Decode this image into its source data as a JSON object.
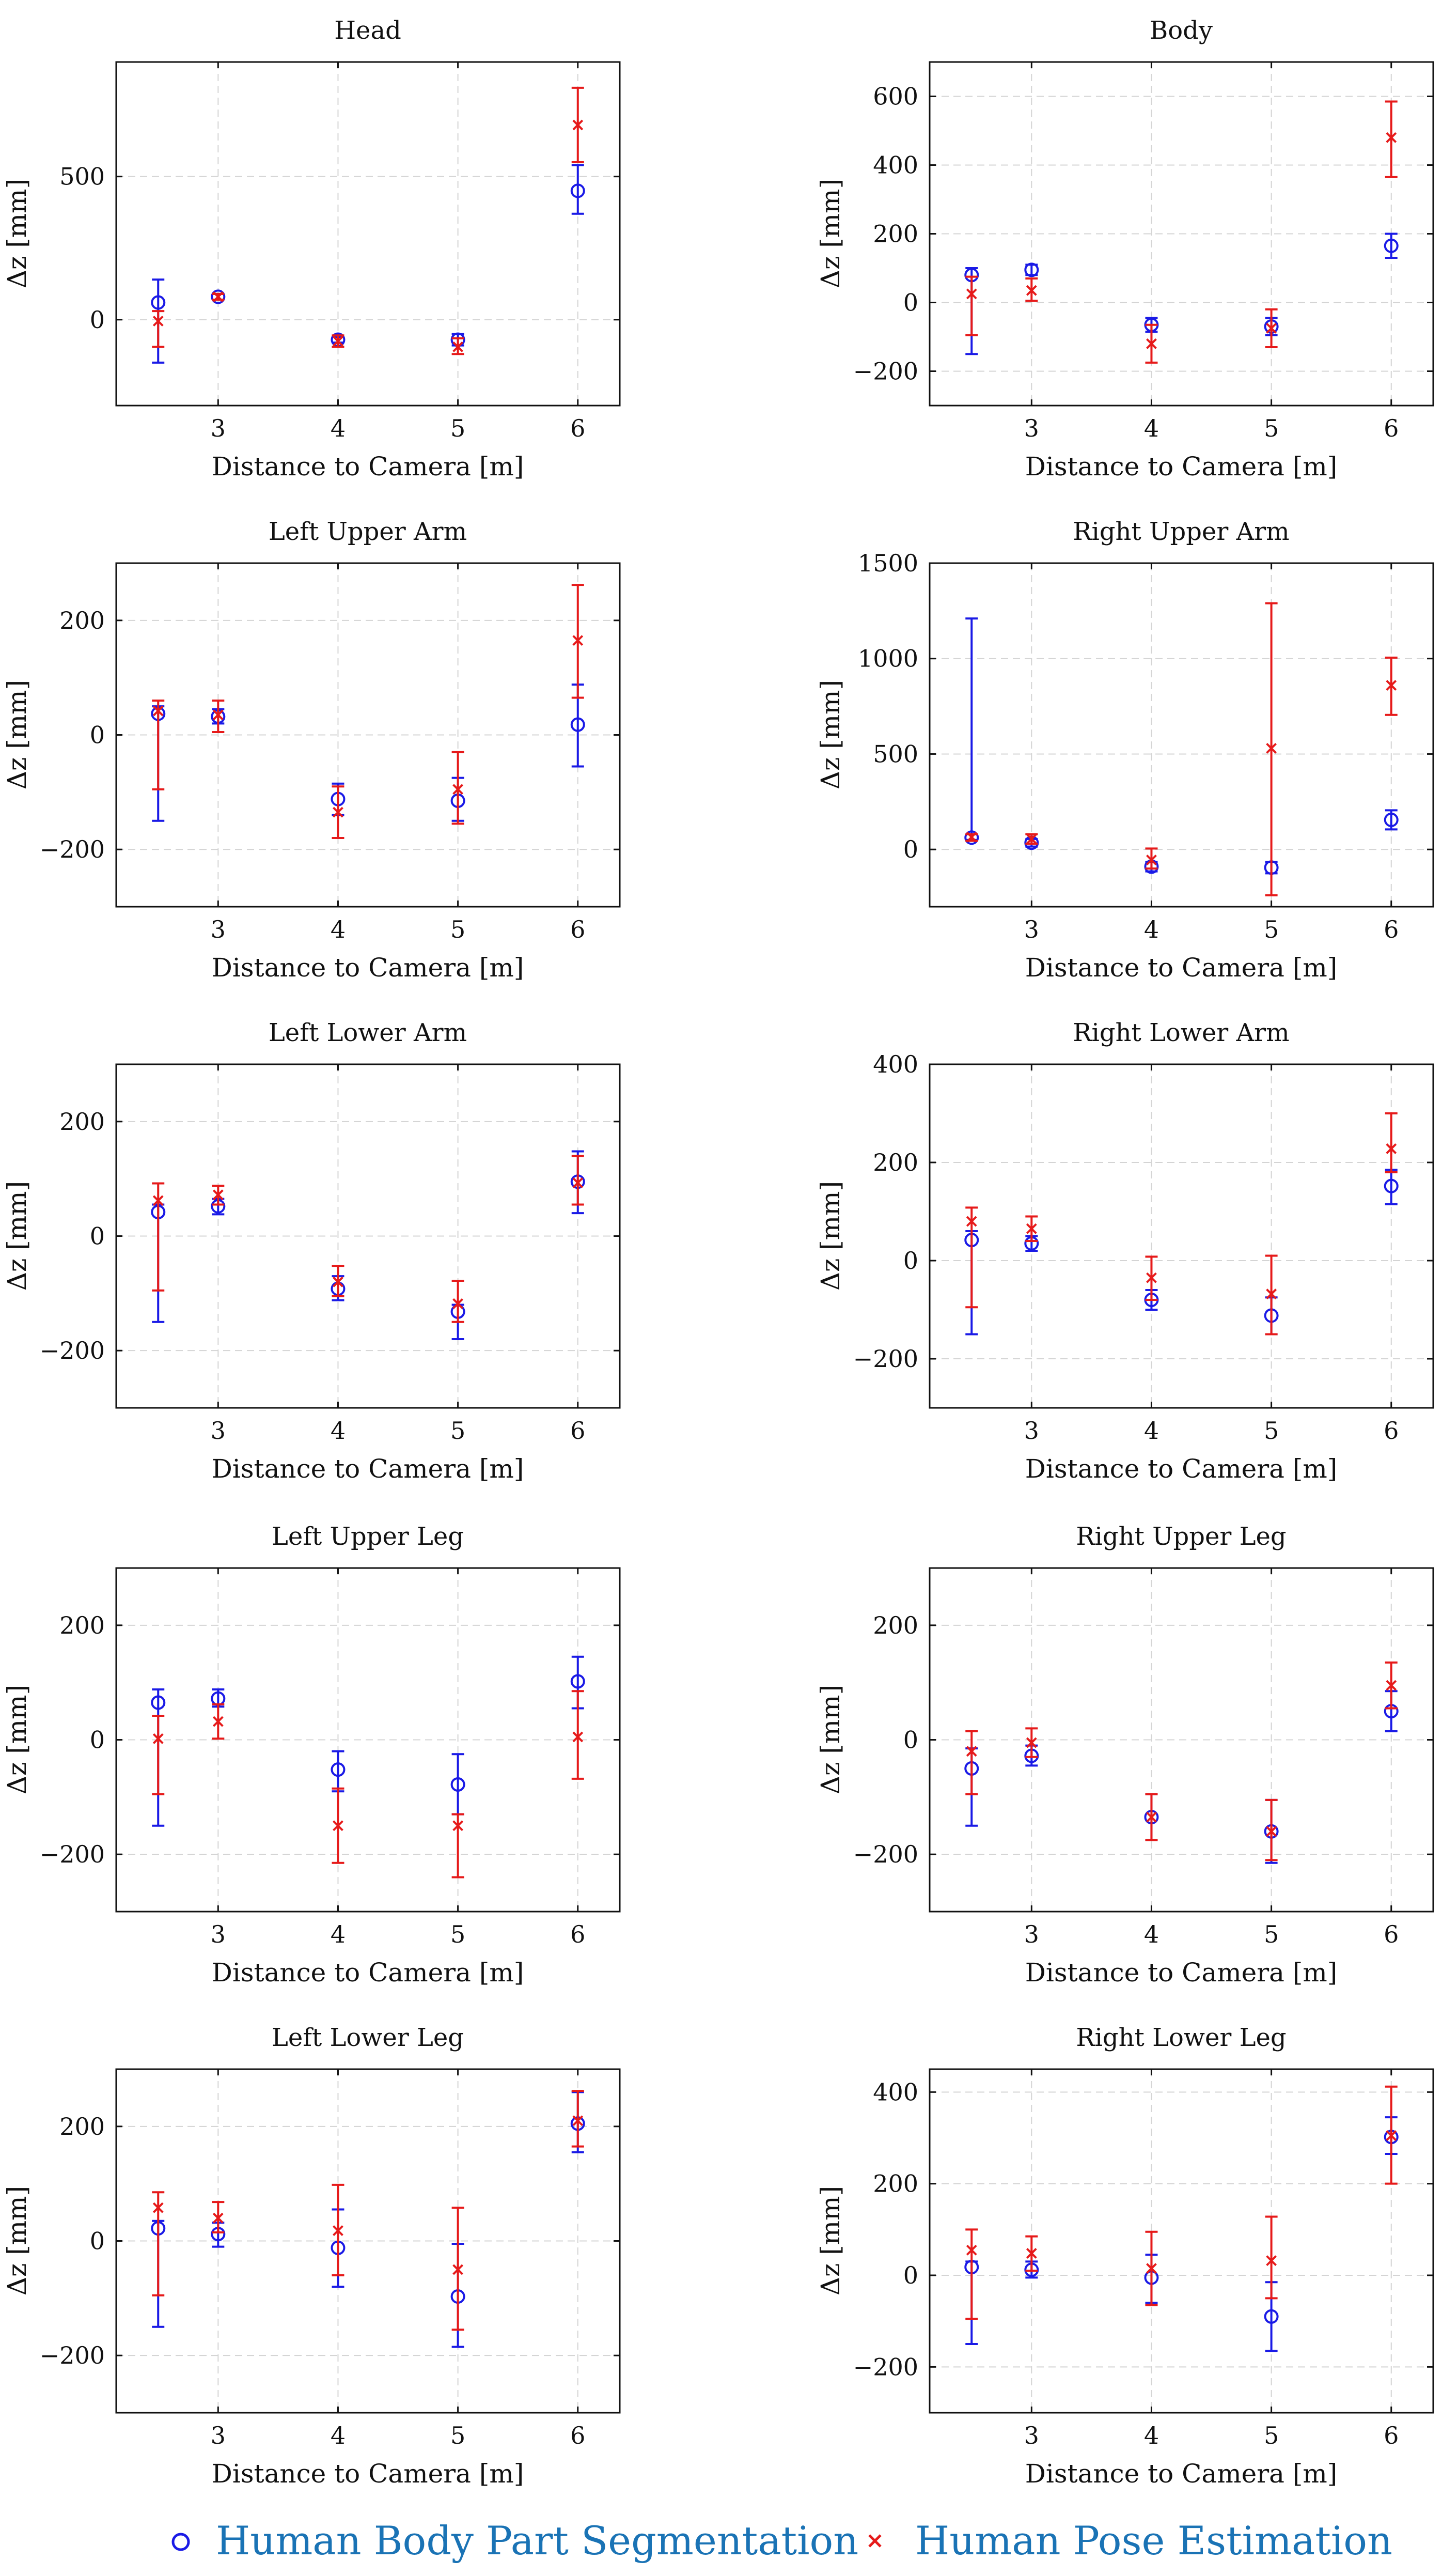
{
  "figure": {
    "legend": [
      {
        "name": "Human Body Part Segmentation",
        "marker": "circle",
        "color": "#1a1ae6",
        "text_color": "#1a73b5"
      },
      {
        "name": "Human Pose Estimation",
        "marker": "x",
        "color": "#e61a1a",
        "text_color": "#1a73b5"
      }
    ]
  },
  "chart_data": [
    {
      "type": "scatter",
      "title": "Head",
      "xlabel": "Distance to Camera [m]",
      "ylabel": "Δz [mm]",
      "xlim": [
        2.15,
        6.35
      ],
      "ylim": [
        -300,
        900
      ],
      "xticks": [
        3,
        4,
        5,
        6
      ],
      "yticks": [
        0,
        500
      ],
      "grid": true,
      "x": [
        2.5,
        3,
        4,
        5,
        6
      ],
      "series": [
        {
          "name": "Human Body Part Segmentation",
          "marker": "circle",
          "color": "#1a1ae6",
          "values": [
            60,
            80,
            -70,
            -70,
            450
          ],
          "lower": [
            -150,
            70,
            -80,
            -90,
            370
          ],
          "upper": [
            140,
            90,
            -60,
            -50,
            540
          ]
        },
        {
          "name": "Human Pose Estimation",
          "marker": "x",
          "color": "#e61a1a",
          "values": [
            -5,
            80,
            -75,
            -95,
            680
          ],
          "lower": [
            -95,
            70,
            -95,
            -120,
            550
          ],
          "upper": [
            30,
            90,
            -55,
            -65,
            810
          ]
        }
      ]
    },
    {
      "type": "scatter",
      "title": "Body",
      "xlabel": "Distance to Camera [m]",
      "ylabel": "Δz [mm]",
      "xlim": [
        2.15,
        6.35
      ],
      "ylim": [
        -300,
        700
      ],
      "xticks": [
        3,
        4,
        5,
        6
      ],
      "yticks": [
        -200,
        0,
        200,
        400,
        600
      ],
      "grid": true,
      "x": [
        2.5,
        3,
        4,
        5,
        6
      ],
      "series": [
        {
          "name": "Human Body Part Segmentation",
          "marker": "circle",
          "color": "#1a1ae6",
          "values": [
            80,
            95,
            -65,
            -70,
            165
          ],
          "lower": [
            -150,
            80,
            -85,
            -95,
            130
          ],
          "upper": [
            100,
            110,
            -45,
            -45,
            200
          ]
        },
        {
          "name": "Human Pose Estimation",
          "marker": "x",
          "color": "#e61a1a",
          "values": [
            25,
            35,
            -120,
            -75,
            480
          ],
          "lower": [
            -95,
            5,
            -175,
            -130,
            365
          ],
          "upper": [
            75,
            70,
            -65,
            -20,
            585
          ]
        }
      ]
    },
    {
      "type": "scatter",
      "title": "Left Upper Arm",
      "xlabel": "Distance to Camera [m]",
      "ylabel": "Δz [mm]",
      "xlim": [
        2.15,
        6.35
      ],
      "ylim": [
        -300,
        300
      ],
      "xticks": [
        3,
        4,
        5,
        6
      ],
      "yticks": [
        -200,
        0,
        200
      ],
      "grid": true,
      "x": [
        2.5,
        3,
        4,
        5,
        6
      ],
      "series": [
        {
          "name": "Human Body Part Segmentation",
          "marker": "circle",
          "color": "#1a1ae6",
          "values": [
            37,
            32,
            -112,
            -115,
            18
          ],
          "lower": [
            -150,
            20,
            -140,
            -150,
            -55
          ],
          "upper": [
            50,
            45,
            -85,
            -75,
            88
          ]
        },
        {
          "name": "Human Pose Estimation",
          "marker": "x",
          "color": "#e61a1a",
          "values": [
            42,
            35,
            -135,
            -95,
            165
          ],
          "lower": [
            -95,
            5,
            -180,
            -155,
            65
          ],
          "upper": [
            60,
            60,
            -90,
            -30,
            262
          ]
        }
      ]
    },
    {
      "type": "scatter",
      "title": "Right Upper Arm",
      "xlabel": "Distance to Camera [m]",
      "ylabel": "Δz [mm]",
      "xlim": [
        2.15,
        6.35
      ],
      "ylim": [
        -300,
        1500
      ],
      "xticks": [
        3,
        4,
        5,
        6
      ],
      "yticks": [
        0,
        500,
        1000,
        1500
      ],
      "grid": true,
      "x": [
        2.5,
        3,
        4,
        5,
        6
      ],
      "series": [
        {
          "name": "Human Body Part Segmentation",
          "marker": "circle",
          "color": "#1a1ae6",
          "values": [
            62,
            35,
            -90,
            -95,
            155
          ],
          "lower": [
            50,
            15,
            -115,
            -125,
            105
          ],
          "upper": [
            1210,
            55,
            -65,
            -65,
            205
          ]
        },
        {
          "name": "Human Pose Estimation",
          "marker": "x",
          "color": "#e61a1a",
          "values": [
            65,
            55,
            -55,
            530,
            860
          ],
          "lower": [
            45,
            30,
            -100,
            -240,
            705
          ],
          "upper": [
            80,
            80,
            5,
            1290,
            1005
          ]
        }
      ]
    },
    {
      "type": "scatter",
      "title": "Left Lower Arm",
      "xlabel": "Distance to Camera [m]",
      "ylabel": "Δz [mm]",
      "xlim": [
        2.15,
        6.35
      ],
      "ylim": [
        -300,
        300
      ],
      "xticks": [
        3,
        4,
        5,
        6
      ],
      "yticks": [
        -200,
        0,
        200
      ],
      "grid": true,
      "x": [
        2.5,
        3,
        4,
        5,
        6
      ],
      "series": [
        {
          "name": "Human Body Part Segmentation",
          "marker": "circle",
          "color": "#1a1ae6",
          "values": [
            42,
            52,
            -92,
            -132,
            95
          ],
          "lower": [
            -150,
            38,
            -112,
            -180,
            40
          ],
          "upper": [
            55,
            65,
            -70,
            -120,
            148
          ]
        },
        {
          "name": "Human Pose Estimation",
          "marker": "x",
          "color": "#e61a1a",
          "values": [
            62,
            72,
            -80,
            -118,
            93
          ],
          "lower": [
            -95,
            55,
            -105,
            -150,
            55
          ],
          "upper": [
            92,
            88,
            -52,
            -78,
            140
          ]
        }
      ]
    },
    {
      "type": "scatter",
      "title": "Right Lower Arm",
      "xlabel": "Distance to Camera [m]",
      "ylabel": "Δz [mm]",
      "xlim": [
        2.15,
        6.35
      ],
      "ylim": [
        -300,
        400
      ],
      "xticks": [
        3,
        4,
        5,
        6
      ],
      "yticks": [
        -200,
        0,
        200,
        400
      ],
      "grid": true,
      "x": [
        2.5,
        3,
        4,
        5,
        6
      ],
      "series": [
        {
          "name": "Human Body Part Segmentation",
          "marker": "circle",
          "color": "#1a1ae6",
          "values": [
            42,
            35,
            -80,
            -112,
            152
          ],
          "lower": [
            -150,
            20,
            -100,
            -150,
            115
          ],
          "upper": [
            60,
            50,
            -60,
            -75,
            185
          ]
        },
        {
          "name": "Human Pose Estimation",
          "marker": "x",
          "color": "#e61a1a",
          "values": [
            80,
            65,
            -35,
            -68,
            228
          ],
          "lower": [
            -95,
            40,
            -80,
            -150,
            180
          ],
          "upper": [
            108,
            90,
            8,
            10,
            300
          ]
        }
      ]
    },
    {
      "type": "scatter",
      "title": "Left Upper Leg",
      "xlabel": "Distance to Camera [m]",
      "ylabel": "Δz [mm]",
      "xlim": [
        2.15,
        6.35
      ],
      "ylim": [
        -300,
        300
      ],
      "xticks": [
        3,
        4,
        5,
        6
      ],
      "yticks": [
        -200,
        0,
        200
      ],
      "grid": true,
      "x": [
        2.5,
        3,
        4,
        5,
        6
      ],
      "series": [
        {
          "name": "Human Body Part Segmentation",
          "marker": "circle",
          "color": "#1a1ae6",
          "values": [
            65,
            72,
            -52,
            -78,
            102
          ],
          "lower": [
            -150,
            58,
            -90,
            -130,
            55
          ],
          "upper": [
            88,
            88,
            -20,
            -25,
            145
          ]
        },
        {
          "name": "Human Pose Estimation",
          "marker": "x",
          "color": "#e61a1a",
          "values": [
            2,
            32,
            -150,
            -150,
            5
          ],
          "lower": [
            -95,
            2,
            -215,
            -240,
            -68
          ],
          "upper": [
            42,
            62,
            -85,
            -130,
            85
          ]
        }
      ]
    },
    {
      "type": "scatter",
      "title": "Right Upper Leg",
      "xlabel": "Distance to Camera [m]",
      "ylabel": "Δz [mm]",
      "xlim": [
        2.15,
        6.35
      ],
      "ylim": [
        -300,
        300
      ],
      "xticks": [
        3,
        4,
        5,
        6
      ],
      "yticks": [
        -200,
        0,
        200
      ],
      "grid": true,
      "x": [
        2.5,
        3,
        4,
        5,
        6
      ],
      "series": [
        {
          "name": "Human Body Part Segmentation",
          "marker": "circle",
          "color": "#1a1ae6",
          "values": [
            -50,
            -28,
            -135,
            -160,
            50
          ],
          "lower": [
            -150,
            -45,
            -175,
            -215,
            15
          ],
          "upper": [
            -15,
            -10,
            -95,
            -105,
            85
          ]
        },
        {
          "name": "Human Pose Estimation",
          "marker": "x",
          "color": "#e61a1a",
          "values": [
            -20,
            -5,
            -135,
            -160,
            95
          ],
          "lower": [
            -95,
            -30,
            -175,
            -210,
            55
          ],
          "upper": [
            15,
            20,
            -95,
            -105,
            135
          ]
        }
      ]
    },
    {
      "type": "scatter",
      "title": "Left Lower Leg",
      "xlabel": "Distance to Camera [m]",
      "ylabel": "Δz [mm]",
      "xlim": [
        2.15,
        6.35
      ],
      "ylim": [
        -300,
        300
      ],
      "xticks": [
        3,
        4,
        5,
        6
      ],
      "yticks": [
        -200,
        0,
        200
      ],
      "grid": true,
      "x": [
        2.5,
        3,
        4,
        5,
        6
      ],
      "series": [
        {
          "name": "Human Body Part Segmentation",
          "marker": "circle",
          "color": "#1a1ae6",
          "values": [
            22,
            12,
            -12,
            -97,
            205
          ],
          "lower": [
            -150,
            -10,
            -80,
            -185,
            155
          ],
          "upper": [
            35,
            32,
            55,
            -5,
            260
          ]
        },
        {
          "name": "Human Pose Estimation",
          "marker": "x",
          "color": "#e61a1a",
          "values": [
            58,
            40,
            18,
            -50,
            210
          ],
          "lower": [
            -95,
            15,
            -60,
            -155,
            165
          ],
          "upper": [
            85,
            68,
            98,
            58,
            262
          ]
        }
      ]
    },
    {
      "type": "scatter",
      "title": "Right Lower Leg",
      "xlabel": "Distance to Camera [m]",
      "ylabel": "Δz [mm]",
      "xlim": [
        2.15,
        6.35
      ],
      "ylim": [
        -300,
        450
      ],
      "xticks": [
        3,
        4,
        5,
        6
      ],
      "yticks": [
        -200,
        0,
        200,
        400
      ],
      "grid": true,
      "x": [
        2.5,
        3,
        4,
        5,
        6
      ],
      "series": [
        {
          "name": "Human Body Part Segmentation",
          "marker": "circle",
          "color": "#1a1ae6",
          "values": [
            18,
            12,
            -5,
            -90,
            302
          ],
          "lower": [
            -150,
            -5,
            -60,
            -165,
            265
          ],
          "upper": [
            30,
            30,
            45,
            -15,
            345
          ]
        },
        {
          "name": "Human Pose Estimation",
          "marker": "x",
          "color": "#e61a1a",
          "values": [
            55,
            48,
            15,
            32,
            305
          ],
          "lower": [
            -95,
            10,
            -65,
            -50,
            200
          ],
          "upper": [
            100,
            85,
            95,
            128,
            412
          ]
        }
      ]
    }
  ]
}
